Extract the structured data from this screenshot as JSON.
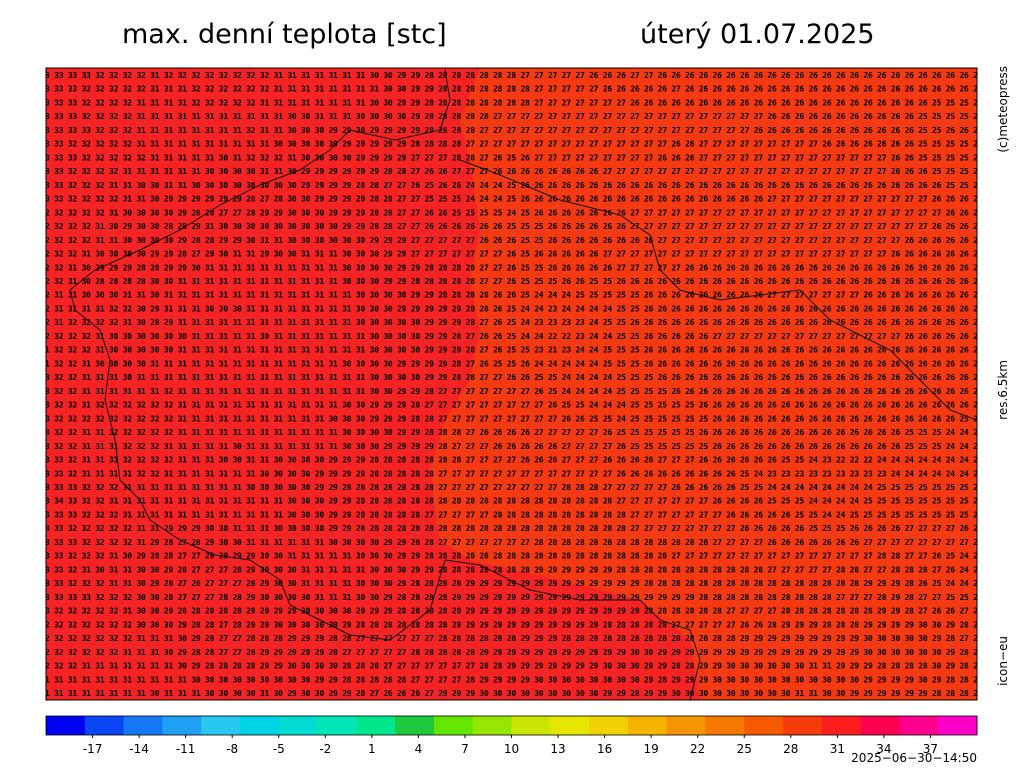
{
  "header": {
    "title": "max. denní teplota [stc]",
    "date": "úterý 01.07.2025"
  },
  "side_labels": {
    "copyright": "(c)meteopress",
    "resolution": "res.6.5km",
    "model": "icon−eu"
  },
  "timestamp": "2025−06−30−14:50",
  "grid": {
    "rows": [
      "3 33 33 33 32 32 32 32 31 32 32 32 32 32 32 32 32 31 31 31 31 31 31 31 30 30 29 29 28 28 28 28 28 28 28 27 27 27 27 27 26 26 26 27 27 26 26 26 26 26 26 26 26 26 26 26 26 26 26 26 26 26 26 26 26 26 26 26 2",
      "3 33 33 32 32 32 32 32 31 31 31 32 32 32 32 32 32 31 31 31 31 31 31 31 31 30 30 29 29 28 28 28 28 28 28 28 27 27 27 27 27 26 26 26 26 26 27 26 26 26 26 26 26 26 26 26 26 26 26 26 26 26 26 26 26 26 26 26 2",
      "3 33 33 32 32 32 32 31 31 31 31 32 32 32 32 32 31 31 31 31 31 31 31 31 30 30 29 29 28 28 28 28 28 28 28 28 27 27 27 27 27 27 27 26 26 26 26 26 26 26 26 26 26 26 26 26 26 26 26 26 26 26 26 26 26 25 25 25 2",
      "3 33 33 32 32 32 32 31 31 31 31 31 31 31 31 31 31 31 30 30 31 31 31 30 30 30 30 29 28 28 28 28 28 27 27 27 27 27 27 27 27 27 27 27 27 27 27 27 27 27 27 27 27 26 26 26 26 26 26 26 26 26 26 26 25 25 25 25 2",
      "3 33 33 33 32 32 32 31 31 31 31 31 31 31 31 32 31 31 30 30 30 29 29 30 29 29 29 29 28 28 28 28 27 27 27 27 27 27 27 27 27 27 27 27 27 27 27 27 27 27 27 27 26 26 26 26 26 26 26 26 26 26 26 26 25 25 26 26 2",
      "3 33 32 32 32 32 32 31 31 31 31 31 31 31 31 31 31 30 30 30 30 30 29 29 29 29 29 28 28 28 28 27 27 27 27 27 27 27 27 27 27 27 27 27 27 27 26 26 27 27 27 27 27 27 27 27 27 26 26 26 26 26 26 26 25 25 25 25 2",
      "3 33 33 32 32 32 32 32 31 31 31 31 31 30 31 32 32 32 31 30 30 30 30 29 29 29 29 27 27 27 28 28 27 26 25 26 27 27 27 27 27 27 27 27 27 26 26 26 27 27 27 27 27 27 27 27 27 27 27 27 27 27 26 26 25 25 25 25 2",
      "3 33 32 32 32 32 31 31 31 31 31 31 30 30 30 30 31 31 30 29 29 29 29 29 29 28 28 27 26 26 27 27 27 26 26 26 26 26 26 26 26 27 27 27 27 27 27 27 27 27 27 27 27 27 27 27 27 27 27 27 27 27 26 26 26 25 25 25 2",
      "3 33 32 32 32 31 31 30 30 31 31 30 30 30 30 30 30 30 30 29 29 29 29 28 28 27 27 26 25 26 26 24 24 24 25 26 26 26 26 26 26 26 26 26 26 26 26 26 26 26 26 26 26 26 26 26 26 26 26 26 26 26 26 26 26 26 25 25 2",
      "3 33 32 32 32 32 31 31 30 29 29 29 29 29 29 28 27 28 30 30 29 29 29 29 28 28 27 27 25 25 25 24 24 24 25 26 26 26 26 26 26 26 26 26 26 26 26 26 26 26 26 26 26 27 27 27 27 27 27 27 27 27 27 27 27 26 26 26 2",
      "2 32 32 32 32 31 30 30 30 30 29 28 28 27 27 28 29 29 30 30 30 29 29 29 28 28 27 27 26 26 25 25 25 25 24 25 26 26 26 26 26 26 26 27 27 27 27 27 27 27 27 27 27 27 27 27 27 27 27 27 27 27 27 27 27 27 26 26 2",
      "2 32 32 32 31 30 29 30 30 28 28 29 31 30 30 30 30 30 30 30 30 30 29 29 28 28 27 27 26 26 26 26 26 26 25 25 25 26 26 26 26 26 26 27 27 27 27 27 27 27 27 27 27 27 27 27 27 27 27 27 27 27 27 27 27 26 26 26 2",
      "2 32 32 32 31 31 30 30 30 30 29 28 28 29 29 30 31 31 30 30 30 30 30 30 29 29 29 27 27 27 27 27 26 26 26 25 25 26 26 26 26 26 26 26 26 27 27 27 27 27 27 27 27 27 27 27 27 27 27 27 27 27 27 26 26 26 26 26 2",
      "2 32 32 31 30 30 30 30 29 29 28 27 29 30 31 31 29 30 30 31 31 31 30 30 30 29 29 27 27 27 27 27 27 27 26 25 26 26 26 26 26 27 27 27 27 27 27 27 27 27 27 27 27 27 27 27 27 27 27 27 27 27 26 26 26 26 26 26 2",
      "2 32 31 30 29 29 29 28 28 29 29 30 31 31 31 31 31 31 31 31 31 31 30 30 30 30 29 29 28 28 28 28 27 27 26 25 25 26 26 26 26 26 27 27 27 27 27 26 26 26 26 26 26 26 26 26 26 26 26 26 26 26 26 26 26 26 26 26 2",
      "2 32 31 30 28 28 28 28 30 30 31 31 31 31 31 31 31 31 31 31 31 31 30 30 30 29 29 28 28 28 28 28 27 27 26 25 25 25 26 26 25 25 26 26 26 26 26 26 26 26 26 26 26 26 26 26 26 26 26 26 26 26 26 26 26 26 26 26 2",
      "2 31 31 30 30 30 31 31 30 31 31 31 31 31 31 31 31 31 31 31 31 31 31 30 30 30 30 29 29 28 28 28 28 26 26 25 24 24 24 25 25 25 25 25 26 26 26 26 26 26 26 26 26 27 27 27 27 27 27 27 26 26 26 26 26 26 26 26 2",
      "2 31 31 31 31 32 32 30 29 31 31 31 30 30 30 31 31 31 31 31 31 31 31 30 30 30 29 29 29 29 29 28 28 26 25 24 24 23 24 24 24 24 25 25 26 26 26 26 26 26 26 26 26 26 26 26 26 26 26 26 26 26 26 26 26 26 26 26 2",
      "2 31 32 32 32 32 31 30 28 29 31 31 31 31 31 31 31 31 31 31 31 31 31 30 30 30 30 30 29 29 29 28 27 26 25 24 23 23 23 23 24 25 25 26 26 26 26 26 26 26 26 26 26 26 26 26 26 26 26 26 26 26 26 26 26 26 26 26 2",
      "2 32 32 32 31 30 30 30 30 30 30 31 31 31 31 31 30 31 31 31 31 31 31 31 30 30 30 30 29 29 28 27 26 26 25 24 24 22 22 23 24 24 25 25 26 26 26 26 26 27 27 27 27 27 27 27 27 27 27 27 27 27 27 26 26 26 26 26 2",
      "1 32 32 32 31 30 30 30 30 30 31 31 31 31 31 31 31 31 31 31 31 31 31 31 30 30 30 30 29 29 29 28 27 26 25 25 23 21 23 24 24 25 25 25 26 26 26 26 26 26 26 26 26 26 26 26 26 26 26 26 26 26 26 26 26 26 26 26 2",
      "1 32 32 31 30 30 30 30 31 31 31 31 31 31 31 31 31 31 31 31 31 31 30 30 30 30 29 29 29 29 28 27 26 25 25 26 24 24 24 24 24 25 25 25 26 26 26 26 26 26 26 26 26 26 26 26 26 26 26 26 26 26 26 26 26 26 26 26 2",
      "3 32 32 31 31 31 30 31 31 31 31 31 31 31 31 31 31 31 31 31 31 31 31 31 30 30 30 30 29 29 28 28 27 27 26 26 25 25 24 24 24 24 25 25 25 26 26 26 26 26 26 26 26 26 26 26 26 26 26 26 26 26 26 26 26 26 26 26 2",
      "3 32 32 31 31 31 31 31 31 32 31 31 31 31 31 31 31 31 31 31 31 31 31 31 30 30 29 29 28 27 27 27 27 27 27 27 26 25 24 24 24 24 25 25 25 25 26 26 26 26 26 26 26 26 26 26 26 26 26 26 26 26 26 26 26 26 26 26 2",
      "3 32 32 31 32 32 32 32 32 32 31 31 31 31 31 31 31 31 31 31 31 31 30 30 29 29 29 28 27 27 27 27 27 27 27 27 27 26 25 25 24 24 24 25 25 25 25 25 26 26 26 26 26 26 26 26 26 26 26 26 26 26 26 26 26 26 26 26 2",
      "3 32 32 32 32 32 32 32 32 32 31 31 31 31 31 31 31 31 31 31 31 30 30 30 29 29 29 28 28 27 27 27 27 27 27 27 27 27 26 26 25 25 24 25 25 25 25 25 25 26 26 26 26 26 26 26 26 26 26 26 26 26 26 26 26 26 26 25 2",
      "3 32 32 31 31 32 32 32 32 32 31 31 31 31 31 31 31 31 31 31 31 31 30 30 30 30 29 29 28 28 28 27 26 26 26 26 27 27 27 27 27 26 25 25 25 25 25 25 26 26 26 26 26 26 26 26 26 26 26 26 26 26 26 25 25 25 24 24 2",
      "3 32 32 31 31 31 32 32 32 31 31 31 31 31 30 31 31 31 31 31 31 31 30 30 30 29 29 29 29 28 27 27 27 26 26 26 26 26 27 27 27 27 26 25 25 25 25 25 25 26 26 26 26 26 26 26 26 26 26 26 26 26 26 25 25 25 24 24 2",
      "3 33 32 31 31 31 32 32 32 32 31 31 31 30 30 31 31 30 30 30 30 29 29 29 28 28 28 28 28 28 28 27 27 27 27 26 26 26 27 27 27 26 26 26 26 27 27 27 26 26 26 26 26 26 25 25 24 23 22 22 22 24 24 24 24 24 24 24 2",
      "3 33 32 31 31 31 31 32 32 31 31 31 31 31 31 31 30 30 30 30 29 29 29 29 28 28 28 28 28 27 27 27 27 27 27 27 27 27 27 27 27 27 26 26 26 26 26 26 26 26 26 25 24 23 23 23 23 23 23 23 23 23 24 24 24 24 24 24 2",
      "3 33 33 32 32 32 31 31 31 31 31 31 31 31 31 30 30 30 30 30 29 29 28 28 28 28 28 28 28 27 27 27 27 27 27 27 27 27 28 28 28 27 27 27 27 27 26 26 26 26 26 25 25 24 24 24 24 24 24 24 24 25 25 25 25 25 25 25 2",
      "3 34 33 32 32 31 31 31 31 31 31 31 31 31 31 31 31 31 30 30 30 29 29 28 28 28 28 28 28 28 28 28 28 28 28 28 28 28 28 28 28 28 27 27 27 27 27 27 27 26 26 26 26 25 25 25 24 24 24 24 25 25 25 25 25 25 25 25 2",
      "3 33 33 32 32 32 31 31 31 31 31 31 31 31 31 31 31 31 30 30 30 29 29 28 28 28 28 28 27 27 27 27 27 28 28 28 28 28 28 28 28 28 28 27 27 27 27 27 27 27 26 26 26 26 26 25 25 24 24 25 25 25 25 25 25 25 25 25 2",
      "3 33 32 32 32 32 32 31 31 29 29 29 30 30 31 31 31 30 30 30 30 29 29 28 28 28 28 28 28 28 28 28 28 28 28 28 28 28 28 28 28 28 28 27 27 27 27 27 27 27 27 26 26 26 26 26 25 25 25 26 26 26 26 27 27 27 27 26 2",
      "3 33 33 32 32 32 32 31 29 28 27 28 29 30 30 31 31 31 31 31 31 30 30 30 30 29 29 28 28 27 27 27 27 27 27 27 28 28 28 28 28 28 28 28 28 28 28 28 28 27 27 27 27 26 26 26 26 26 26 26 27 27 27 27 27 27 27 27 2",
      "3 33 32 32 32 31 30 29 28 28 27 27 29 29 29 29 30 30 31 31 31 31 31 30 30 30 29 29 28 28 28 28 28 28 28 28 28 28 28 28 28 28 28 28 28 28 27 27 27 27 27 27 27 27 27 27 27 27 27 27 27 28 28 27 27 26 25 24 2",
      "3 33 32 31 30 31 31 30 30 29 28 27 27 27 28 29 30 30 30 31 31 31 31 31 30 30 30 29 29 28 28 28 28 28 28 28 29 29 29 29 29 29 28 28 28 28 28 28 28 28 28 28 28 27 27 27 27 27 28 28 27 27 28 28 28 27 26 24 2",
      "3 33 32 32 32 31 31 30 29 28 27 26 27 27 27 28 29 30 30 31 31 31 31 30 30 30 29 28 28 28 28 29 29 29 29 29 29 29 29 29 29 29 29 29 28 28 28 28 28 28 28 28 28 28 28 28 28 28 28 28 29 29 29 28 26 25 24 24 2",
      "3 33 33 33 32 32 32 30 30 28 27 27 27 28 28 29 30 30 30 30 31 31 31 30 30 29 28 28 28 28 29 29 29 29 29 29 29 29 29 29 29 29 29 29 29 29 29 29 28 28 28 28 28 28 28 28 28 28 27 27 27 28 29 28 27 27 25 25 2",
      "3 32 32 32 32 32 31 30 30 29 28 28 28 28 28 29 29 29 29 30 30 30 30 29 29 29 28 28 28 28 28 29 29 29 29 29 29 29 29 29 29 29 29 29 28 28 28 28 28 28 27 27 27 27 28 28 28 28 28 28 28 29 29 28 27 26 26 27 2",
      "2 32 32 32 32 32 32 30 30 30 29 28 28 27 28 29 29 30 30 30 30 30 29 28 28 28 28 28 28 28 29 29 29 29 29 29 29 29 29 29 29 28 28 28 28 28 27 27 27 27 27 26 26 28 29 29 29 28 28 28 29 29 29 29 30 30 29 28 2",
      "2 32 32 32 32 32 32 31 31 31 30 29 28 27 27 28 28 28 29 29 29 28 28 27 27 27 27 27 27 28 28 28 28 28 28 29 29 29 28 28 28 28 28 28 28 28 28 28 28 28 28 29 29 29 29 29 29 29 29 29 30 30 30 30 30 29 28 27 2",
      "2 32 32 32 32 32 31 31 31 30 29 28 28 27 27 28 29 29 29 29 29 28 27 27 27 27 27 28 28 28 28 28 29 29 29 29 29 29 29 29 29 29 29 30 30 29 29 29 29 29 29 29 29 29 29 29 29 29 29 29 30 30 30 30 30 30 29 28 2",
      "2 32 32 31 31 31 31 31 31 31 30 29 28 28 28 28 29 29 30 30 30 30 28 28 28 27 27 27 27 27 27 27 28 28 29 29 29 29 29 29 29 30 30 30 29 29 28 28 29 29 30 30 30 30 30 30 31 31 29 29 29 28 28 28 28 30 29 28 2",
      "1 31 31 31 31 31 31 31 31 31 31 30 30 30 30 30 30 30 30 30 29 29 28 28 28 28 28 27 27 27 27 28 29 29 29 29 30 30 30 30 30 30 30 30 29 28 29 29 29 30 30 30 30 30 30 30 30 30 30 30 29 29 29 29 30 29 28 28 2",
      "1 31 31 31 31 31 31 31 30 31 31 31 30 30 30 30 31 30 29 30 30 29 29 28 27 26 26 26 27 29 29 29 30 30 30 30 30 30 30 30 30 29 29 28 29 29 30 30 30 30 30 30 30 30 30 31 31 30 30 29 29 29 29 29 29 28 28 28 2"
    ]
  },
  "colorbar": {
    "min": -20,
    "max": 40,
    "colors": [
      "#0000f0",
      "#0a46f5",
      "#1478f5",
      "#1ea0f5",
      "#28c8f0",
      "#00d2e6",
      "#00dcd2",
      "#00e6b4",
      "#00e68c",
      "#1ec83c",
      "#64e600",
      "#96e600",
      "#c8e600",
      "#e6e600",
      "#f0d200",
      "#f5b400",
      "#f59600",
      "#f57800",
      "#f55a00",
      "#f53c0a",
      "#ff1e1e",
      "#ff0050",
      "#ff008c",
      "#ff00c8"
    ],
    "ticks": [
      -17,
      -14,
      -11,
      -8,
      -5,
      -2,
      1,
      4,
      7,
      10,
      13,
      16,
      19,
      22,
      25,
      28,
      31,
      34,
      37
    ]
  }
}
